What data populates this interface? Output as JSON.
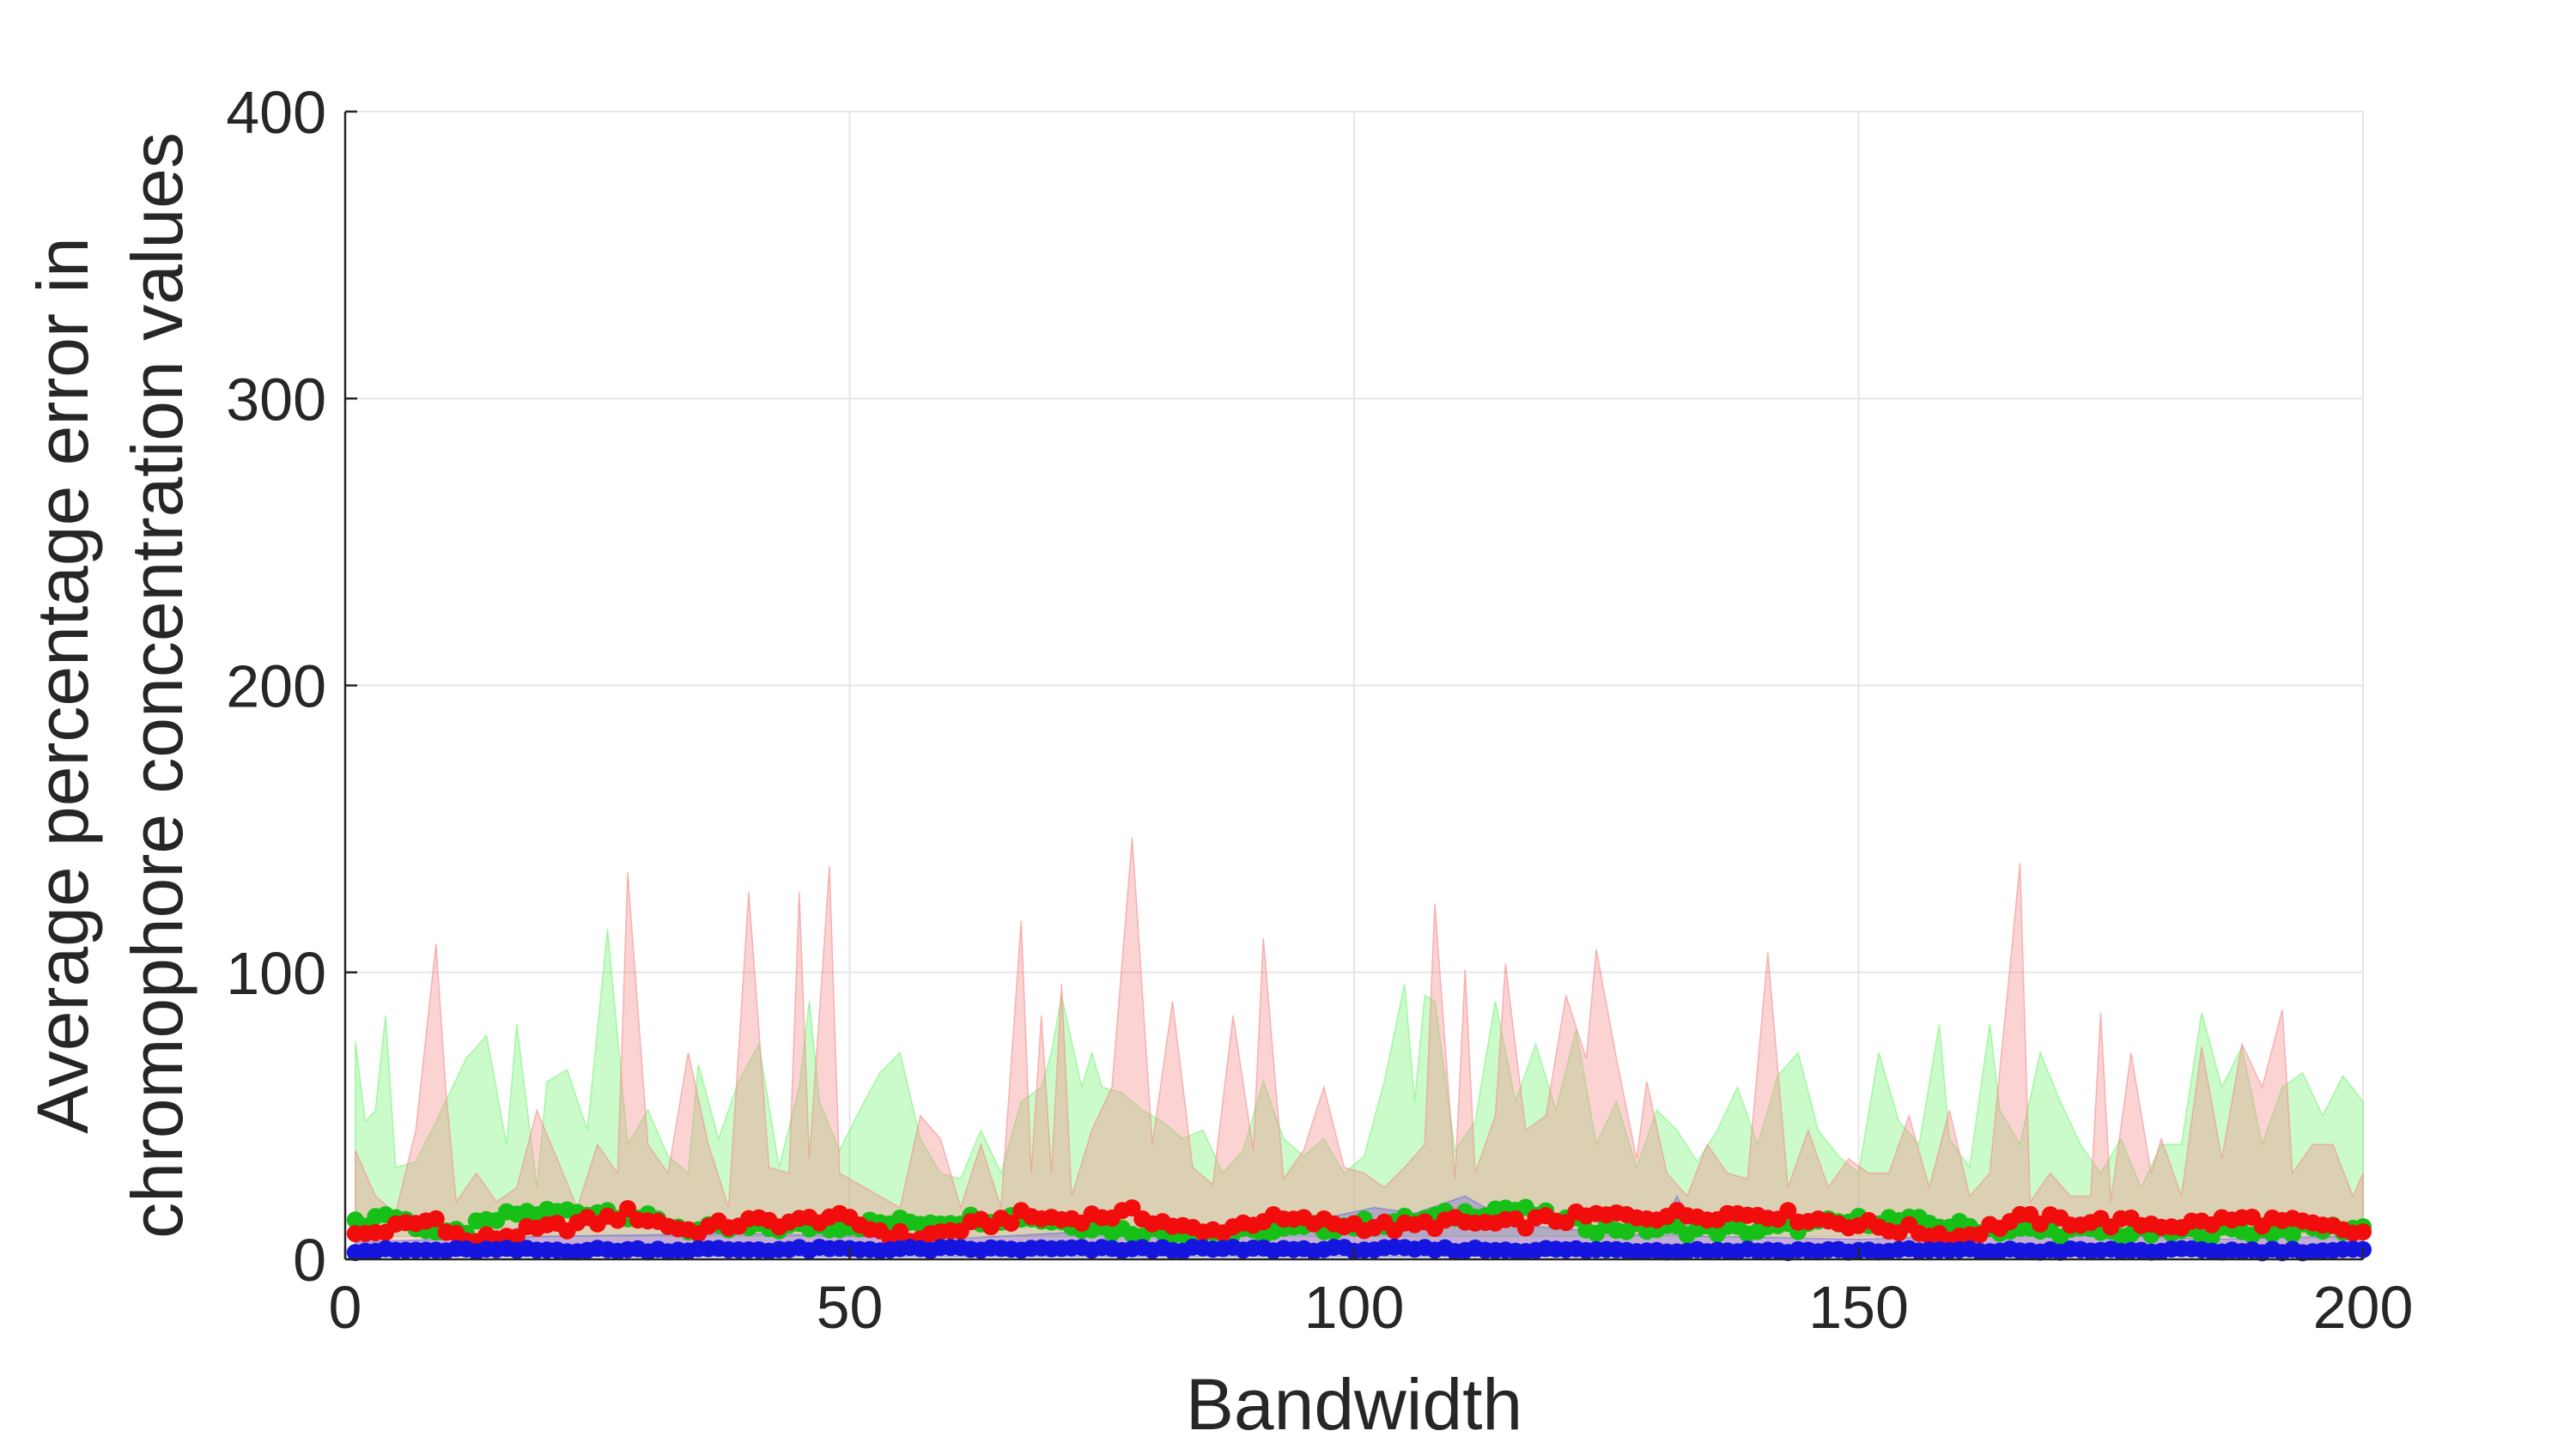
{
  "chart_data": {
    "type": "scatter",
    "title": "",
    "xlabel": "Bandwidth",
    "ylabel_lines": [
      "Average percentage error in",
      "chromophore concentration values"
    ],
    "xlim": [
      0,
      200
    ],
    "ylim": [
      0,
      400
    ],
    "xticks": [
      0,
      50,
      100,
      150,
      200
    ],
    "yticks": [
      0,
      100,
      200,
      300,
      400
    ],
    "grid": true,
    "legend": "none",
    "point_count": 200,
    "bands": [
      {
        "color": "#77f577",
        "band_upper_keypoints": [
          [
            1,
            76
          ],
          [
            2,
            48
          ],
          [
            3,
            52
          ],
          [
            4,
            85
          ],
          [
            5,
            32
          ],
          [
            7,
            34
          ],
          [
            9,
            48
          ],
          [
            12,
            70
          ],
          [
            14,
            78
          ],
          [
            16,
            40
          ],
          [
            17,
            82
          ],
          [
            19,
            25
          ],
          [
            20,
            62
          ],
          [
            22,
            66
          ],
          [
            24,
            45
          ],
          [
            26,
            115
          ],
          [
            28,
            40
          ],
          [
            30,
            52
          ],
          [
            32,
            36
          ],
          [
            34,
            30
          ],
          [
            35,
            68
          ],
          [
            37,
            42
          ],
          [
            39,
            62
          ],
          [
            41,
            75
          ],
          [
            43,
            32
          ],
          [
            45,
            60
          ],
          [
            46,
            90
          ],
          [
            47,
            55
          ],
          [
            49,
            38
          ],
          [
            51,
            52
          ],
          [
            53,
            65
          ],
          [
            55,
            72
          ],
          [
            57,
            42
          ],
          [
            59,
            30
          ],
          [
            61,
            28
          ],
          [
            63,
            45
          ],
          [
            65,
            30
          ],
          [
            67,
            55
          ],
          [
            69,
            60
          ],
          [
            70,
            72
          ],
          [
            71,
            92
          ],
          [
            73,
            60
          ],
          [
            74,
            72
          ],
          [
            75,
            60
          ],
          [
            77,
            58
          ],
          [
            79,
            52
          ],
          [
            81,
            48
          ],
          [
            83,
            42
          ],
          [
            85,
            45
          ],
          [
            87,
            30
          ],
          [
            89,
            38
          ],
          [
            91,
            62
          ],
          [
            93,
            42
          ],
          [
            95,
            36
          ],
          [
            97,
            42
          ],
          [
            99,
            30
          ],
          [
            101,
            36
          ],
          [
            103,
            62
          ],
          [
            105,
            96
          ],
          [
            106,
            55
          ],
          [
            107,
            92
          ],
          [
            108,
            90
          ],
          [
            110,
            38
          ],
          [
            112,
            48
          ],
          [
            114,
            90
          ],
          [
            116,
            55
          ],
          [
            118,
            75
          ],
          [
            120,
            52
          ],
          [
            122,
            80
          ],
          [
            124,
            40
          ],
          [
            126,
            55
          ],
          [
            128,
            32
          ],
          [
            130,
            52
          ],
          [
            132,
            45
          ],
          [
            134,
            34
          ],
          [
            136,
            45
          ],
          [
            138,
            60
          ],
          [
            140,
            40
          ],
          [
            142,
            64
          ],
          [
            144,
            72
          ],
          [
            146,
            45
          ],
          [
            148,
            36
          ],
          [
            150,
            30
          ],
          [
            152,
            72
          ],
          [
            154,
            48
          ],
          [
            156,
            40
          ],
          [
            158,
            82
          ],
          [
            159,
            42
          ],
          [
            161,
            32
          ],
          [
            163,
            82
          ],
          [
            164,
            52
          ],
          [
            166,
            40
          ],
          [
            168,
            72
          ],
          [
            170,
            55
          ],
          [
            172,
            40
          ],
          [
            174,
            30
          ],
          [
            176,
            42
          ],
          [
            178,
            25
          ],
          [
            180,
            40
          ],
          [
            182,
            40
          ],
          [
            184,
            86
          ],
          [
            186,
            60
          ],
          [
            188,
            74
          ],
          [
            190,
            40
          ],
          [
            192,
            60
          ],
          [
            194,
            65
          ],
          [
            196,
            50
          ],
          [
            198,
            64
          ],
          [
            200,
            55
          ]
        ],
        "band_lower": 8
      },
      {
        "color": "#f58c8c",
        "band_upper_keypoints": [
          [
            1,
            38
          ],
          [
            3,
            22
          ],
          [
            5,
            16
          ],
          [
            7,
            45
          ],
          [
            9,
            110
          ],
          [
            10,
            58
          ],
          [
            11,
            20
          ],
          [
            13,
            30
          ],
          [
            15,
            20
          ],
          [
            17,
            25
          ],
          [
            19,
            52
          ],
          [
            21,
            35
          ],
          [
            23,
            18
          ],
          [
            25,
            40
          ],
          [
            27,
            30
          ],
          [
            28,
            135
          ],
          [
            30,
            40
          ],
          [
            32,
            30
          ],
          [
            34,
            72
          ],
          [
            36,
            40
          ],
          [
            38,
            18
          ],
          [
            40,
            128
          ],
          [
            42,
            32
          ],
          [
            44,
            30
          ],
          [
            45,
            128
          ],
          [
            46,
            35
          ],
          [
            48,
            137
          ],
          [
            49,
            30
          ],
          [
            51,
            26
          ],
          [
            53,
            22
          ],
          [
            55,
            18
          ],
          [
            57,
            50
          ],
          [
            59,
            42
          ],
          [
            61,
            18
          ],
          [
            63,
            40
          ],
          [
            65,
            18
          ],
          [
            67,
            118
          ],
          [
            68,
            30
          ],
          [
            69,
            85
          ],
          [
            70,
            30
          ],
          [
            71,
            96
          ],
          [
            72,
            22
          ],
          [
            74,
            45
          ],
          [
            76,
            60
          ],
          [
            78,
            147
          ],
          [
            80,
            40
          ],
          [
            82,
            90
          ],
          [
            84,
            32
          ],
          [
            86,
            26
          ],
          [
            88,
            85
          ],
          [
            90,
            38
          ],
          [
            91,
            112
          ],
          [
            93,
            28
          ],
          [
            95,
            38
          ],
          [
            97,
            60
          ],
          [
            99,
            32
          ],
          [
            101,
            30
          ],
          [
            103,
            25
          ],
          [
            105,
            32
          ],
          [
            107,
            40
          ],
          [
            108,
            124
          ],
          [
            110,
            28
          ],
          [
            111,
            101
          ],
          [
            112,
            30
          ],
          [
            114,
            50
          ],
          [
            115,
            103
          ],
          [
            117,
            45
          ],
          [
            119,
            50
          ],
          [
            121,
            92
          ],
          [
            123,
            70
          ],
          [
            124,
            108
          ],
          [
            126,
            70
          ],
          [
            128,
            35
          ],
          [
            129,
            62
          ],
          [
            131,
            30
          ],
          [
            133,
            22
          ],
          [
            135,
            40
          ],
          [
            137,
            30
          ],
          [
            139,
            28
          ],
          [
            141,
            107
          ],
          [
            143,
            25
          ],
          [
            145,
            45
          ],
          [
            147,
            25
          ],
          [
            149,
            35
          ],
          [
            151,
            30
          ],
          [
            153,
            30
          ],
          [
            155,
            50
          ],
          [
            157,
            25
          ],
          [
            159,
            52
          ],
          [
            161,
            22
          ],
          [
            163,
            30
          ],
          [
            166,
            138
          ],
          [
            167,
            20
          ],
          [
            169,
            30
          ],
          [
            171,
            22
          ],
          [
            173,
            22
          ],
          [
            174,
            86
          ],
          [
            175,
            20
          ],
          [
            177,
            72
          ],
          [
            179,
            30
          ],
          [
            180,
            42
          ],
          [
            182,
            22
          ],
          [
            184,
            74
          ],
          [
            186,
            35
          ],
          [
            188,
            75
          ],
          [
            190,
            60
          ],
          [
            192,
            87
          ],
          [
            193,
            30
          ],
          [
            195,
            40
          ],
          [
            197,
            40
          ],
          [
            199,
            22
          ],
          [
            200,
            30
          ]
        ],
        "band_lower": 5
      },
      {
        "color": "#6d6dd9",
        "band_upper_keypoints": [
          [
            1,
            6
          ],
          [
            20,
            8
          ],
          [
            40,
            9
          ],
          [
            60,
            7
          ],
          [
            75,
            10
          ],
          [
            90,
            9
          ],
          [
            102,
            18
          ],
          [
            106,
            16
          ],
          [
            111,
            22
          ],
          [
            116,
            12
          ],
          [
            130,
            8
          ],
          [
            132,
            22
          ],
          [
            134,
            8
          ],
          [
            150,
            7
          ],
          [
            170,
            9
          ],
          [
            185,
            7
          ],
          [
            200,
            8
          ]
        ],
        "band_lower": 1
      }
    ],
    "series": [
      {
        "color": "#16c016",
        "mean_keypoints": [
          [
            1,
            12
          ],
          [
            4,
            16
          ],
          [
            10,
            8
          ],
          [
            17,
            16
          ],
          [
            26,
            17
          ],
          [
            35,
            10
          ],
          [
            50,
            12
          ],
          [
            67,
            15
          ],
          [
            77,
            10
          ],
          [
            90,
            9
          ],
          [
            107,
            14
          ],
          [
            115,
            18
          ],
          [
            124,
            11
          ],
          [
            140,
            10
          ],
          [
            152,
            14
          ],
          [
            165,
            10
          ],
          [
            180,
            9
          ],
          [
            190,
            10
          ],
          [
            200,
            11
          ]
        ]
      },
      {
        "color": "#f20d0d",
        "mean_keypoints": [
          [
            1,
            8
          ],
          [
            9,
            14
          ],
          [
            12,
            6
          ],
          [
            26,
            14
          ],
          [
            28,
            16
          ],
          [
            34,
            10
          ],
          [
            40,
            13
          ],
          [
            45,
            13
          ],
          [
            48,
            15
          ],
          [
            56,
            7
          ],
          [
            67,
            15
          ],
          [
            71,
            14
          ],
          [
            78,
            16
          ],
          [
            85,
            9
          ],
          [
            91,
            14
          ],
          [
            105,
            11
          ],
          [
            109,
            13
          ],
          [
            115,
            12
          ],
          [
            120,
            14
          ],
          [
            124,
            15
          ],
          [
            141,
            16
          ],
          [
            160,
            8
          ],
          [
            166,
            14
          ],
          [
            174,
            13
          ],
          [
            182,
            12
          ],
          [
            188,
            14
          ],
          [
            192,
            13
          ],
          [
            200,
            9
          ]
        ]
      },
      {
        "color": "#1515e0",
        "mean_keypoints": [
          [
            1,
            3
          ],
          [
            50,
            3.5
          ],
          [
            100,
            3.5
          ],
          [
            150,
            3
          ],
          [
            200,
            3
          ]
        ]
      }
    ]
  }
}
